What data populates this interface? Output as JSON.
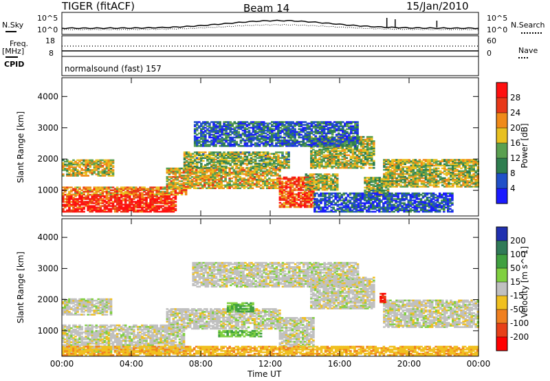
{
  "header": {
    "radar": "TIGER (fitACF)",
    "beam": "Beam 14",
    "date": "15/Jan/2010"
  },
  "params": {
    "nsky_label": "N.Sky",
    "nsearch_label": "N.Search",
    "freq_label_1": "Freq.",
    "freq_label_2": "[MHz]",
    "nave_label": "Nave",
    "cpid_label": "CPID",
    "noise_left_top": "10^5",
    "noise_left_bottom": "10^0",
    "noise_right_top": "10^5",
    "noise_right_bottom": "10^0",
    "freq_top": "18",
    "freq_bottom": "8",
    "nave_top": "60",
    "nave_bottom": "0",
    "cpid_text": "normalsound (fast) 157"
  },
  "axes": {
    "ylabel": "Slant Range [km]",
    "xlabel": "Time UT",
    "x_ticks": [
      "00:00",
      "04:00",
      "08:00",
      "12:00",
      "16:00",
      "20:00",
      "00:00"
    ],
    "y_ticks": [
      "1000",
      "2000",
      "3000",
      "4000"
    ]
  },
  "chart_data": [
    {
      "type": "heatmap",
      "name": "power",
      "xlabel": "Time UT",
      "ylabel": "Slant Range [km]",
      "xlim": [
        0,
        24
      ],
      "ylim": [
        180,
        4600
      ],
      "colorbar": {
        "label": "Power [dB]",
        "ticks": [
          "4",
          "8",
          "12",
          "16",
          "20",
          "24",
          "28"
        ],
        "colors": [
          "#1a1aff",
          "#2050c8",
          "#2e7d4f",
          "#5aa050",
          "#e8c020",
          "#f08a18",
          "#e83818",
          "#ff1010"
        ]
      },
      "regions": [
        {
          "t0": 0.0,
          "t1": 6.6,
          "r0": 300,
          "r1": 850,
          "level": 0.95
        },
        {
          "t0": 0.0,
          "t1": 7.2,
          "r0": 850,
          "r1": 1100,
          "level": 0.7
        },
        {
          "t0": 0.0,
          "t1": 3.0,
          "r0": 1450,
          "r1": 1950,
          "level": 0.55
        },
        {
          "t0": 6.0,
          "t1": 12.5,
          "r0": 1050,
          "r1": 1700,
          "level": 0.6
        },
        {
          "t0": 12.5,
          "t1": 14.5,
          "r0": 450,
          "r1": 1400,
          "level": 0.85
        },
        {
          "t0": 7.0,
          "t1": 13.0,
          "r0": 1700,
          "r1": 2200,
          "level": 0.45
        },
        {
          "t0": 14.3,
          "t1": 18.0,
          "r0": 1700,
          "r1": 2700,
          "level": 0.5
        },
        {
          "t0": 14.0,
          "t1": 15.8,
          "r0": 1000,
          "r1": 1500,
          "level": 0.5
        },
        {
          "t0": 17.4,
          "t1": 18.8,
          "r0": 800,
          "r1": 1400,
          "level": 0.45
        },
        {
          "t0": 18.5,
          "t1": 24.0,
          "r0": 1100,
          "r1": 2000,
          "level": 0.5
        },
        {
          "t0": 7.6,
          "t1": 17.0,
          "r0": 2400,
          "r1": 3200,
          "level": 0.2
        },
        {
          "t0": 14.5,
          "t1": 22.5,
          "r0": 300,
          "r1": 900,
          "level": 0.15
        }
      ]
    },
    {
      "type": "heatmap",
      "name": "velocity",
      "xlabel": "Time UT",
      "ylabel": "Slant Range [km]",
      "xlim": [
        0,
        24
      ],
      "ylim": [
        180,
        4600
      ],
      "colorbar": {
        "label": "Velocity [m s^-1]",
        "ticks": [
          "200",
          "100",
          "50",
          "15",
          "-15",
          "-50",
          "-100",
          "-200"
        ],
        "colors": [
          "#2030b0",
          "#307a58",
          "#40a040",
          "#80d040",
          "#c0c0c0",
          "#f0c020",
          "#f08020",
          "#e84018",
          "#ff0000"
        ]
      },
      "regions": [
        {
          "t0": 0.0,
          "t1": 7.0,
          "r0": 300,
          "r1": 1200,
          "level": 0.0
        },
        {
          "t0": 0.0,
          "t1": 2.8,
          "r0": 1500,
          "r1": 2000,
          "level": 0.0
        },
        {
          "t0": 6.0,
          "t1": 12.5,
          "r0": 1050,
          "r1": 1700,
          "level": 0.0
        },
        {
          "t0": 12.5,
          "t1": 14.5,
          "r0": 450,
          "r1": 1400,
          "level": 0.0
        },
        {
          "t0": 7.5,
          "t1": 17.0,
          "r0": 2400,
          "r1": 3200,
          "level": 0.0
        },
        {
          "t0": 14.3,
          "t1": 18.0,
          "r0": 1700,
          "r1": 2700,
          "level": 0.0
        },
        {
          "t0": 18.5,
          "t1": 24.0,
          "r0": 1100,
          "r1": 2000,
          "level": 0.0
        },
        {
          "t0": 9.5,
          "t1": 11.0,
          "r0": 1600,
          "r1": 1900,
          "level": 0.4
        },
        {
          "t0": 9.0,
          "t1": 11.5,
          "r0": 800,
          "r1": 1000,
          "level": 0.35
        },
        {
          "t0": 0.0,
          "t1": 24.0,
          "r0": 200,
          "r1": 500,
          "level": -0.3
        },
        {
          "t0": 18.3,
          "t1": 18.6,
          "r0": 1900,
          "r1": 2200,
          "level": -0.9
        }
      ]
    }
  ]
}
